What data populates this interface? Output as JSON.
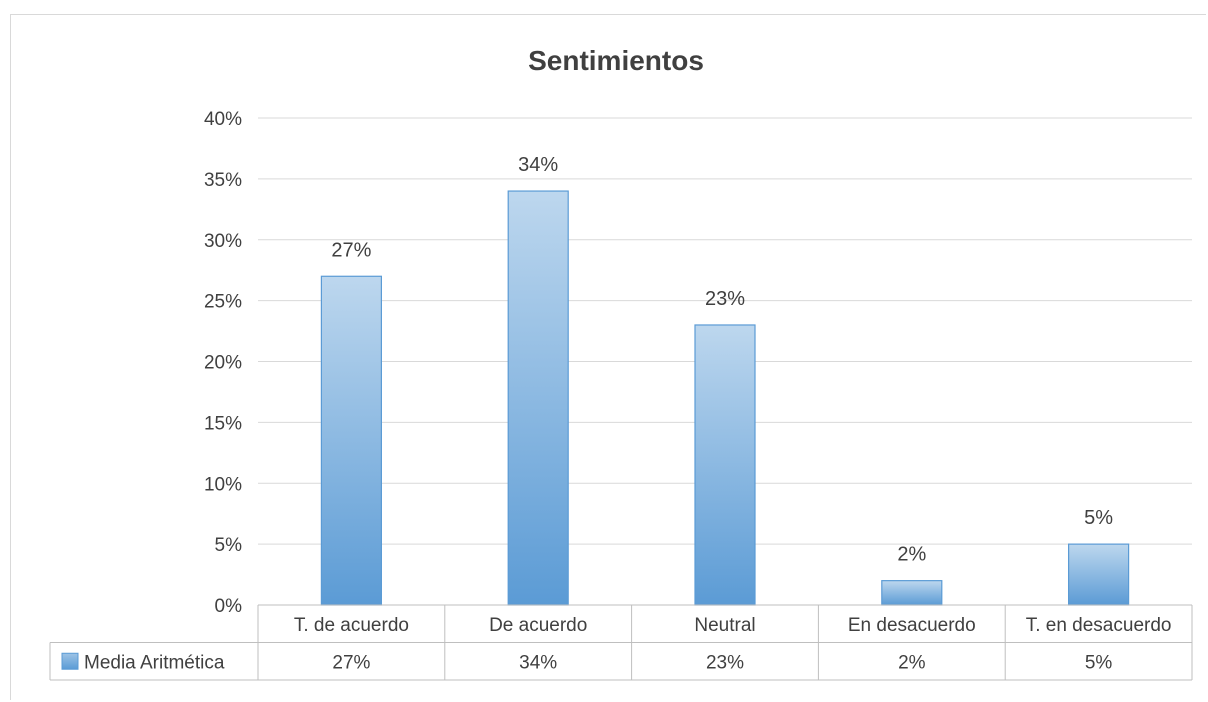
{
  "chart_data": {
    "type": "bar",
    "title": "Sentimientos",
    "categories": [
      "T. de acuerdo",
      "De acuerdo",
      "Neutral",
      "En desacuerdo",
      "T. en desacuerdo"
    ],
    "series": [
      {
        "name": "Media Aritmética",
        "values": [
          27,
          34,
          23,
          2,
          5
        ],
        "labels": [
          "27%",
          "34%",
          "23%",
          "2%",
          "5%"
        ],
        "color": "#5b9bd5"
      }
    ],
    "ylim": [
      0,
      40
    ],
    "y_ticks": [
      "0%",
      "5%",
      "10%",
      "15%",
      "20%",
      "25%",
      "30%",
      "35%",
      "40%"
    ],
    "grid": true,
    "legend": "data-table-left"
  }
}
